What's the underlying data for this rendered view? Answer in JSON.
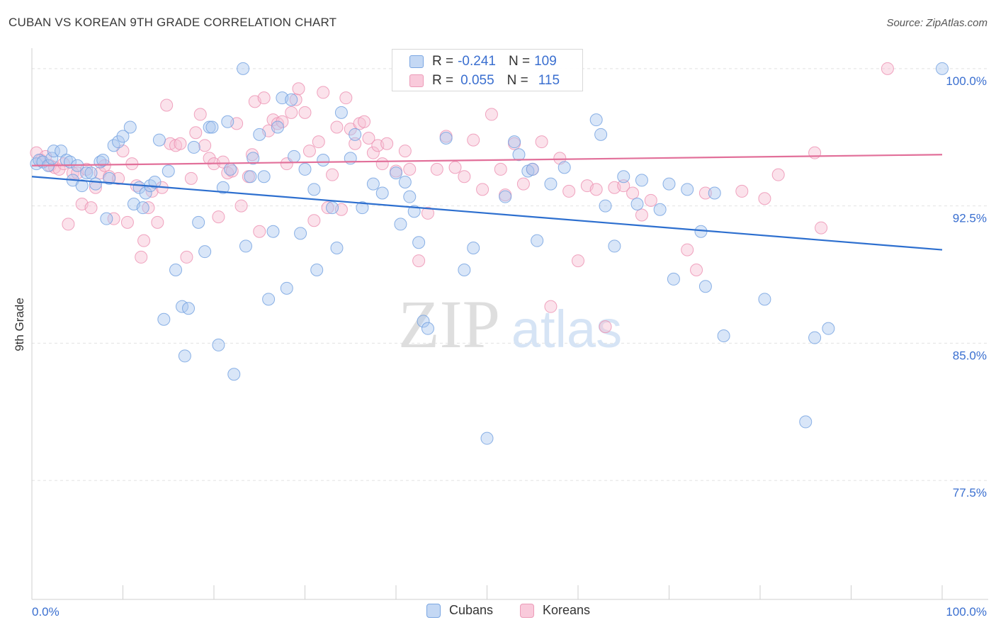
{
  "title": "CUBAN VS KOREAN 9TH GRADE CORRELATION CHART",
  "source": "Source: ZipAtlas.com",
  "watermark": {
    "zip": "ZIP",
    "atlas": "atlas"
  },
  "colors": {
    "cubans_fill": "#aac8f0",
    "cubans_stroke": "#6f9fe0",
    "cubans_line": "#2d6fcf",
    "koreans_fill": "#f7bfd2",
    "koreans_stroke": "#ec8fb0",
    "koreans_line": "#e2709a",
    "tick_label": "#3a6fd0"
  },
  "legend": {
    "rows": [
      {
        "r_label": "R =",
        "r_value": "-0.241",
        "n_label": "N =",
        "n_value": "109"
      },
      {
        "r_label": "R =",
        "r_value": "0.055",
        "n_label": "N =",
        "n_value": "115"
      }
    ]
  },
  "chart_data": {
    "type": "scatter",
    "title": "CUBAN VS KOREAN 9TH GRADE CORRELATION CHART",
    "xlabel": "",
    "ylabel": "9th Grade",
    "xlim": [
      0,
      100
    ],
    "ylim": [
      71,
      101
    ],
    "x_tick_labels": [
      "0.0%",
      "100.0%"
    ],
    "y_ticks": [
      77.5,
      85.0,
      92.5,
      100.0
    ],
    "y_tick_labels": [
      "77.5%",
      "85.0%",
      "92.5%",
      "100.0%"
    ],
    "grid": true,
    "legend_position": "top-center",
    "series": [
      {
        "name": "Cubans",
        "trend": {
          "x": [
            0,
            100
          ],
          "y": [
            94.1,
            90.1
          ]
        },
        "points": [
          [
            0.5,
            94.8
          ],
          [
            0.8,
            95.0
          ],
          [
            1.2,
            94.9
          ],
          [
            1.8,
            94.7
          ],
          [
            2.2,
            95.1
          ],
          [
            2.4,
            95.5
          ],
          [
            3.2,
            95.5
          ],
          [
            3.8,
            95.0
          ],
          [
            4.2,
            94.9
          ],
          [
            4.5,
            93.9
          ],
          [
            5.0,
            94.7
          ],
          [
            5.5,
            93.6
          ],
          [
            6.0,
            94.3
          ],
          [
            6.5,
            94.3
          ],
          [
            7.0,
            93.7
          ],
          [
            7.5,
            94.9
          ],
          [
            7.8,
            95.0
          ],
          [
            8.2,
            91.8
          ],
          [
            8.5,
            94.0
          ],
          [
            9.0,
            95.8
          ],
          [
            9.5,
            96.0
          ],
          [
            10.0,
            96.3
          ],
          [
            10.8,
            96.8
          ],
          [
            11.2,
            92.6
          ],
          [
            11.8,
            93.5
          ],
          [
            12.2,
            92.4
          ],
          [
            12.5,
            93.2
          ],
          [
            13.0,
            93.6
          ],
          [
            13.5,
            93.8
          ],
          [
            14.0,
            96.1
          ],
          [
            14.5,
            86.3
          ],
          [
            15.0,
            94.4
          ],
          [
            15.8,
            89.0
          ],
          [
            16.5,
            87.0
          ],
          [
            16.8,
            84.3
          ],
          [
            17.2,
            86.9
          ],
          [
            17.8,
            95.7
          ],
          [
            18.3,
            91.6
          ],
          [
            19.0,
            90.0
          ],
          [
            19.5,
            96.8
          ],
          [
            19.8,
            96.8
          ],
          [
            20.5,
            84.9
          ],
          [
            21.0,
            93.5
          ],
          [
            21.5,
            97.1
          ],
          [
            21.8,
            94.5
          ],
          [
            22.2,
            83.3
          ],
          [
            23.2,
            100.0
          ],
          [
            23.5,
            90.3
          ],
          [
            24.0,
            94.1
          ],
          [
            24.3,
            95.1
          ],
          [
            25.0,
            96.4
          ],
          [
            25.5,
            94.1
          ],
          [
            26.0,
            87.4
          ],
          [
            26.5,
            91.1
          ],
          [
            27.0,
            96.8
          ],
          [
            27.5,
            98.4
          ],
          [
            28.0,
            88.0
          ],
          [
            28.5,
            98.3
          ],
          [
            28.8,
            95.2
          ],
          [
            29.5,
            91.0
          ],
          [
            30.0,
            94.5
          ],
          [
            31.0,
            93.4
          ],
          [
            31.3,
            89.0
          ],
          [
            32.0,
            95.0
          ],
          [
            33.0,
            92.4
          ],
          [
            33.5,
            90.2
          ],
          [
            34.0,
            97.6
          ],
          [
            35.0,
            95.1
          ],
          [
            35.5,
            96.4
          ],
          [
            36.3,
            92.4
          ],
          [
            37.5,
            93.7
          ],
          [
            38.5,
            93.2
          ],
          [
            40.0,
            94.3
          ],
          [
            40.5,
            91.5
          ],
          [
            41.0,
            93.8
          ],
          [
            41.5,
            93.0
          ],
          [
            42.0,
            92.2
          ],
          [
            42.5,
            90.5
          ],
          [
            43.0,
            86.2
          ],
          [
            43.5,
            85.8
          ],
          [
            45.5,
            96.2
          ],
          [
            47.5,
            89.0
          ],
          [
            48.5,
            90.2
          ],
          [
            50.0,
            79.8
          ],
          [
            52.0,
            93.0
          ],
          [
            53.0,
            96.0
          ],
          [
            53.5,
            95.3
          ],
          [
            54.5,
            94.4
          ],
          [
            55.0,
            94.5
          ],
          [
            55.5,
            90.6
          ],
          [
            57.0,
            93.7
          ],
          [
            58.5,
            94.6
          ],
          [
            62.0,
            97.2
          ],
          [
            62.5,
            96.4
          ],
          [
            63.0,
            92.5
          ],
          [
            64.0,
            90.3
          ],
          [
            65.0,
            94.1
          ],
          [
            66.5,
            92.6
          ],
          [
            67.0,
            93.9
          ],
          [
            69.0,
            92.3
          ],
          [
            70.0,
            93.7
          ],
          [
            70.5,
            88.5
          ],
          [
            72.0,
            93.4
          ],
          [
            73.5,
            91.1
          ],
          [
            74.0,
            88.1
          ],
          [
            75.0,
            93.2
          ],
          [
            76.0,
            85.4
          ],
          [
            80.5,
            87.4
          ],
          [
            85.0,
            80.7
          ],
          [
            86.0,
            85.3
          ],
          [
            87.5,
            85.8
          ],
          [
            100.0,
            100.0
          ]
        ]
      },
      {
        "name": "Koreans",
        "trend": {
          "x": [
            0,
            100
          ],
          "y": [
            94.7,
            95.3
          ]
        },
        "points": [
          [
            0.5,
            95.4
          ],
          [
            1.0,
            95.0
          ],
          [
            1.5,
            95.2
          ],
          [
            2.0,
            94.7
          ],
          [
            2.5,
            94.6
          ],
          [
            3.0,
            94.5
          ],
          [
            3.5,
            94.8
          ],
          [
            4.0,
            91.5
          ],
          [
            4.5,
            94.3
          ],
          [
            5.0,
            94.3
          ],
          [
            5.5,
            92.6
          ],
          [
            6.0,
            94.5
          ],
          [
            6.5,
            92.4
          ],
          [
            7.0,
            93.5
          ],
          [
            7.5,
            94.3
          ],
          [
            8.0,
            94.7
          ],
          [
            8.5,
            94.1
          ],
          [
            9.0,
            91.8
          ],
          [
            9.5,
            94.0
          ],
          [
            10.0,
            95.5
          ],
          [
            10.5,
            91.6
          ],
          [
            11.0,
            94.8
          ],
          [
            11.5,
            93.6
          ],
          [
            12.0,
            89.7
          ],
          [
            12.3,
            90.6
          ],
          [
            12.8,
            92.4
          ],
          [
            13.2,
            93.3
          ],
          [
            13.8,
            91.6
          ],
          [
            14.3,
            93.5
          ],
          [
            14.8,
            98.0
          ],
          [
            15.2,
            95.9
          ],
          [
            15.8,
            95.8
          ],
          [
            16.3,
            95.9
          ],
          [
            17.0,
            89.7
          ],
          [
            17.5,
            94.0
          ],
          [
            18.0,
            96.5
          ],
          [
            18.5,
            97.5
          ],
          [
            19.0,
            95.8
          ],
          [
            19.5,
            95.1
          ],
          [
            20.0,
            94.8
          ],
          [
            20.5,
            91.9
          ],
          [
            21.0,
            94.9
          ],
          [
            21.5,
            94.3
          ],
          [
            22.0,
            94.4
          ],
          [
            22.5,
            97.0
          ],
          [
            23.0,
            92.5
          ],
          [
            23.8,
            94.1
          ],
          [
            24.2,
            95.3
          ],
          [
            24.5,
            98.2
          ],
          [
            25.0,
            91.1
          ],
          [
            25.5,
            98.4
          ],
          [
            26.0,
            96.6
          ],
          [
            26.5,
            97.2
          ],
          [
            27.0,
            97.0
          ],
          [
            27.5,
            97.1
          ],
          [
            28.0,
            94.8
          ],
          [
            28.5,
            97.6
          ],
          [
            29.0,
            98.3
          ],
          [
            29.3,
            98.9
          ],
          [
            30.0,
            97.6
          ],
          [
            30.5,
            95.5
          ],
          [
            31.0,
            91.7
          ],
          [
            31.5,
            96.0
          ],
          [
            32.0,
            98.7
          ],
          [
            32.5,
            92.4
          ],
          [
            33.0,
            94.2
          ],
          [
            33.5,
            96.8
          ],
          [
            34.0,
            92.3
          ],
          [
            34.5,
            98.4
          ],
          [
            35.0,
            96.7
          ],
          [
            35.5,
            95.9
          ],
          [
            36.0,
            97.0
          ],
          [
            36.5,
            97.1
          ],
          [
            37.0,
            96.2
          ],
          [
            37.5,
            95.4
          ],
          [
            38.0,
            95.8
          ],
          [
            38.5,
            94.8
          ],
          [
            39.0,
            95.9
          ],
          [
            40.0,
            94.4
          ],
          [
            41.0,
            95.5
          ],
          [
            41.5,
            94.5
          ],
          [
            42.5,
            89.5
          ],
          [
            43.5,
            92.1
          ],
          [
            44.5,
            94.5
          ],
          [
            45.5,
            96.3
          ],
          [
            46.5,
            94.6
          ],
          [
            47.5,
            94.1
          ],
          [
            48.5,
            96.1
          ],
          [
            49.5,
            93.4
          ],
          [
            50.5,
            97.5
          ],
          [
            51.5,
            94.5
          ],
          [
            52.0,
            93.1
          ],
          [
            53.0,
            95.9
          ],
          [
            54.0,
            93.7
          ],
          [
            55.0,
            94.5
          ],
          [
            56.0,
            96.0
          ],
          [
            57.0,
            87.0
          ],
          [
            58.0,
            95.1
          ],
          [
            59.0,
            93.3
          ],
          [
            60.0,
            89.5
          ],
          [
            61.0,
            93.6
          ],
          [
            62.0,
            93.4
          ],
          [
            63.0,
            85.9
          ],
          [
            64.0,
            93.5
          ],
          [
            65.0,
            93.6
          ],
          [
            66.0,
            93.2
          ],
          [
            67.0,
            92.0
          ],
          [
            68.0,
            92.8
          ],
          [
            72.0,
            90.1
          ],
          [
            73.0,
            89.0
          ],
          [
            74.0,
            93.2
          ],
          [
            78.0,
            93.3
          ],
          [
            80.5,
            92.9
          ],
          [
            82.0,
            94.2
          ],
          [
            86.0,
            95.4
          ],
          [
            86.7,
            91.3
          ],
          [
            94.0,
            100.0
          ]
        ]
      }
    ]
  },
  "bottom_legend": {
    "items": [
      {
        "label": "Cubans"
      },
      {
        "label": "Koreans"
      }
    ]
  }
}
